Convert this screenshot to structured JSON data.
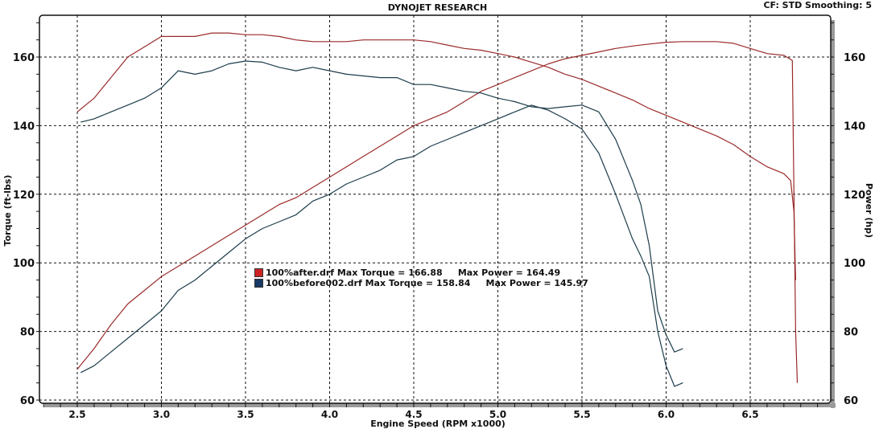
{
  "header": {
    "title": "DYNOJET RESEARCH",
    "settings": "CF: STD  Smoothing: 5"
  },
  "legend": [
    {
      "file": "100%after.drf",
      "text": "100%after.drf Max Torque = 166.88     Max Power = 164.49",
      "color": "#cc2222"
    },
    {
      "file": "100%before002.drf",
      "text": "100%before002.drf Max Torque = 158.84     Max Power = 145.97",
      "color": "#1a3a66"
    }
  ],
  "axes": {
    "x_label": "Engine Speed (RPM x1000)",
    "y_left_label": "Torque (ft-lbs)",
    "y_right_label": "Power (hp)"
  },
  "chart_data": {
    "type": "line",
    "title": "DYNOJET RESEARCH",
    "subtitle": "CF: STD  Smoothing: 5",
    "xlabel": "Engine Speed (RPM x1000)",
    "ylabel": "Torque (ft-lbs)",
    "y2label": "Power (hp)",
    "xlim": [
      2.27,
      6.95
    ],
    "ylim": [
      59,
      172
    ],
    "x_ticks": [
      "2.5",
      "3.0",
      "3.5",
      "4.0",
      "4.5",
      "5.0",
      "5.5",
      "6.0",
      "6.5"
    ],
    "y_ticks": [
      "60",
      "80",
      "100",
      "120",
      "140",
      "160"
    ],
    "y2_ticks": [
      "60",
      "80",
      "100",
      "120",
      "140",
      "160"
    ],
    "grid": true,
    "legend_position": "inside-center",
    "colors": {
      "after": "#9b2a2a",
      "before": "#1c3d4a"
    },
    "series": [
      {
        "name": "100%after.drf Torque",
        "axis": "left",
        "x": [
          2.5,
          2.6,
          2.7,
          2.8,
          2.9,
          3.0,
          3.1,
          3.2,
          3.3,
          3.4,
          3.5,
          3.6,
          3.7,
          3.8,
          3.9,
          4.0,
          4.1,
          4.2,
          4.3,
          4.4,
          4.5,
          4.6,
          4.7,
          4.8,
          4.9,
          5.0,
          5.1,
          5.2,
          5.3,
          5.4,
          5.5,
          5.6,
          5.7,
          5.8,
          5.9,
          6.0,
          6.1,
          6.2,
          6.3,
          6.4,
          6.5,
          6.6,
          6.7,
          6.74,
          6.76,
          6.77
        ],
        "values": [
          144,
          148,
          154,
          160,
          163,
          166,
          166,
          166,
          167,
          167,
          166.5,
          166.5,
          166,
          165,
          164.5,
          164.5,
          164.5,
          165,
          165,
          165,
          165,
          164.5,
          163.5,
          162.5,
          162,
          161,
          160,
          158.5,
          157,
          155,
          153.5,
          151.5,
          149.5,
          147.5,
          145,
          143,
          141,
          139,
          137,
          134.5,
          131,
          128,
          126,
          124,
          115,
          95
        ]
      },
      {
        "name": "100%after.drf Power",
        "axis": "right",
        "x": [
          2.5,
          2.6,
          2.7,
          2.8,
          2.9,
          3.0,
          3.1,
          3.2,
          3.3,
          3.4,
          3.5,
          3.6,
          3.7,
          3.8,
          3.9,
          4.0,
          4.1,
          4.2,
          4.3,
          4.4,
          4.5,
          4.6,
          4.7,
          4.8,
          4.9,
          5.0,
          5.1,
          5.2,
          5.3,
          5.4,
          5.5,
          5.6,
          5.7,
          5.8,
          5.9,
          6.0,
          6.1,
          6.2,
          6.3,
          6.4,
          6.5,
          6.6,
          6.7,
          6.75,
          6.76,
          6.77,
          6.78
        ],
        "values": [
          69,
          75,
          82,
          88,
          92,
          96,
          99,
          102,
          105,
          108,
          111,
          114,
          117,
          119,
          122,
          125,
          128,
          131,
          134,
          137,
          140,
          142,
          144,
          147,
          150,
          152,
          154,
          156,
          158,
          159.5,
          160.5,
          161.5,
          162.5,
          163.2,
          163.8,
          164.3,
          164.5,
          164.5,
          164.5,
          164,
          162.5,
          161,
          160.5,
          159,
          120,
          80,
          65
        ]
      },
      {
        "name": "100%before002.drf Torque",
        "axis": "left",
        "x": [
          2.52,
          2.6,
          2.7,
          2.8,
          2.9,
          3.0,
          3.1,
          3.2,
          3.3,
          3.4,
          3.5,
          3.6,
          3.7,
          3.8,
          3.9,
          4.0,
          4.1,
          4.2,
          4.3,
          4.4,
          4.5,
          4.6,
          4.7,
          4.8,
          4.9,
          5.0,
          5.1,
          5.2,
          5.3,
          5.4,
          5.5,
          5.6,
          5.7,
          5.8,
          5.85,
          5.9,
          5.95,
          6.0,
          6.05,
          6.1
        ],
        "values": [
          141,
          142,
          144,
          146,
          148,
          151,
          156,
          155,
          156,
          158,
          158.84,
          158.5,
          157,
          156,
          157,
          156,
          155,
          154.5,
          154,
          154,
          152,
          152,
          151,
          150,
          149.5,
          148,
          147,
          145.5,
          145,
          145.5,
          146,
          144,
          136,
          124,
          117,
          105,
          86,
          79,
          74,
          75
        ]
      },
      {
        "name": "100%before002.drf Power",
        "axis": "right",
        "x": [
          2.52,
          2.6,
          2.7,
          2.8,
          2.9,
          3.0,
          3.1,
          3.2,
          3.3,
          3.4,
          3.5,
          3.6,
          3.7,
          3.8,
          3.9,
          4.0,
          4.1,
          4.2,
          4.3,
          4.4,
          4.5,
          4.6,
          4.7,
          4.8,
          4.9,
          5.0,
          5.1,
          5.2,
          5.3,
          5.4,
          5.5,
          5.6,
          5.7,
          5.8,
          5.85,
          5.9,
          5.95,
          6.0,
          6.05,
          6.1
        ],
        "values": [
          68,
          70,
          74,
          78,
          82,
          86,
          92,
          95,
          99,
          103,
          107,
          110,
          112,
          114,
          118,
          120,
          123,
          125,
          127,
          130,
          131,
          134,
          136,
          138,
          140,
          142,
          144,
          145.97,
          144.5,
          142,
          139,
          132,
          120,
          107,
          102,
          96,
          80,
          70,
          64,
          65
        ]
      }
    ],
    "annotations": [
      "100%after.drf Max Torque = 166.88     Max Power = 164.49",
      "100%before002.drf Max Torque = 158.84     Max Power = 145.97"
    ]
  }
}
